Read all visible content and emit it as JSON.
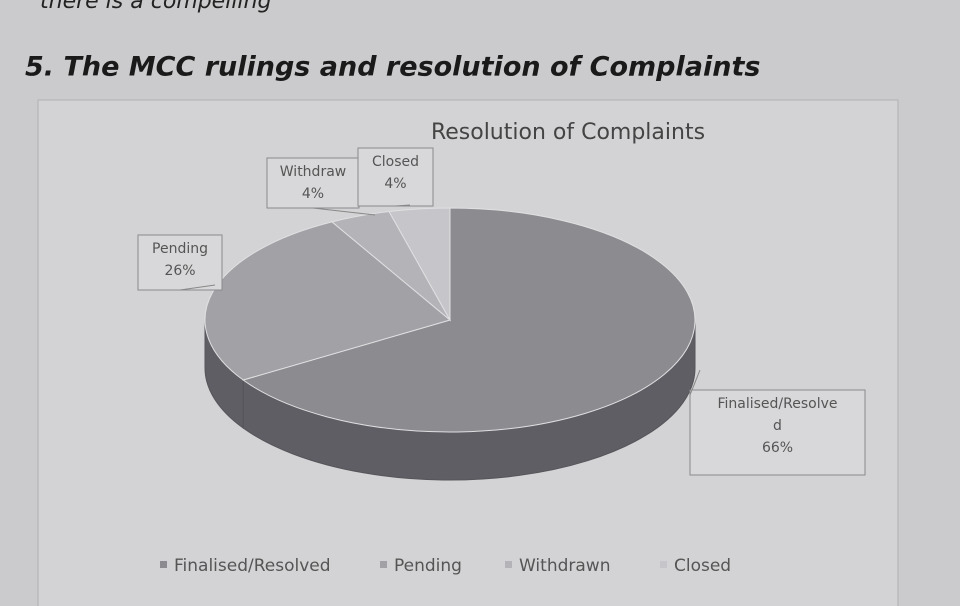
{
  "top_fragment": "there is a compelling",
  "heading": "5. The MCC rulings and resolution of Complaints",
  "chart_data": {
    "type": "pie3d",
    "title": "Resolution of Complaints",
    "categories": [
      "Finalised/Resolved",
      "Pending",
      "Withdrawn",
      "Closed"
    ],
    "label_names": [
      "Finalised/Resolve d",
      "Pending",
      "Withdraw",
      "Closed"
    ],
    "values": [
      66,
      26,
      4,
      4
    ],
    "value_labels": [
      "66%",
      "26%",
      "4%",
      "4%"
    ],
    "colors": [
      "#8c8c90",
      "#a2a2a6",
      "#b4b4b8",
      "#c6c6ca"
    ],
    "legend": "bottom"
  }
}
